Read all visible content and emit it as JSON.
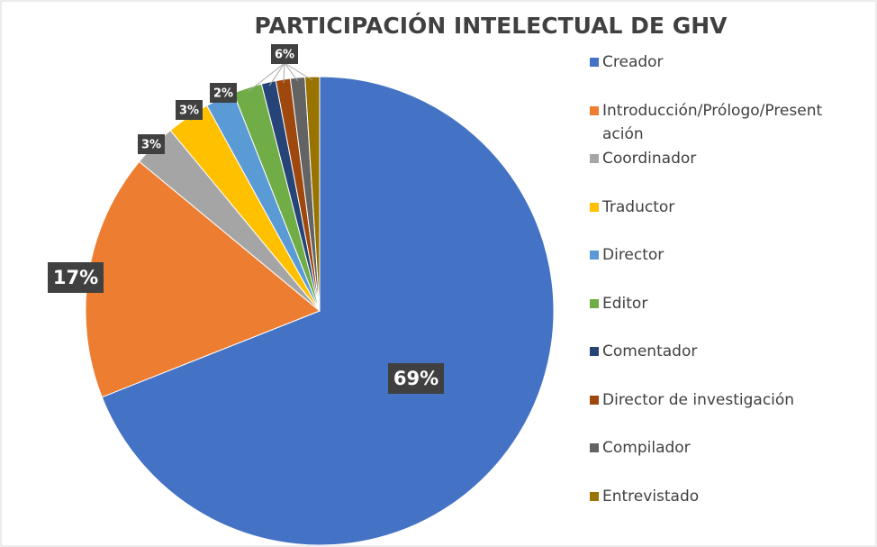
{
  "chart_data": {
    "type": "pie",
    "title": "PARTICIPACIÓN INTELECTUAL DE GHV",
    "categories": [
      "Creador",
      "Introducción/Prólogo/Presentación",
      "Coordinador",
      "Traductor",
      "Director",
      "Editor",
      "Comentador",
      "Director de investigación",
      "Compilador",
      "Entrevistado"
    ],
    "values": [
      69,
      17,
      3,
      3,
      2,
      2,
      1,
      1,
      1,
      1
    ],
    "value_labels": [
      "69%",
      "17%",
      "3%",
      "3%",
      "2%",
      null,
      null,
      null,
      null,
      null
    ],
    "annotation": "6%",
    "colors": [
      "#4472c4",
      "#ed7d31",
      "#a5a5a5",
      "#ffc000",
      "#5b9bd5",
      "#70ad47",
      "#264478",
      "#9e480e",
      "#636363",
      "#997300"
    ],
    "legend": "right"
  }
}
